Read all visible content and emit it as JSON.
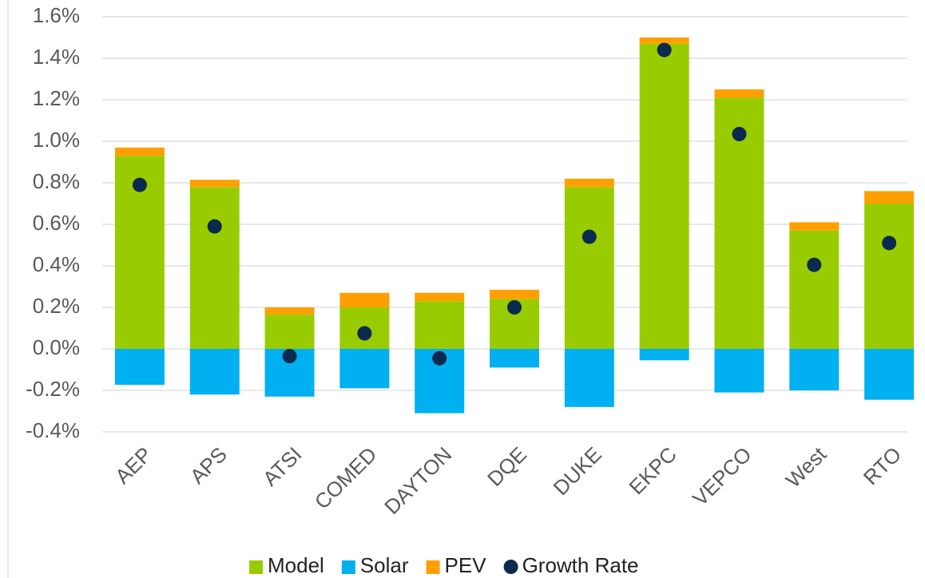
{
  "chart_data": {
    "type": "bar",
    "categories": [
      "AEP",
      "APS",
      "ATSI",
      "COMED",
      "DAYTON",
      "DQE",
      "DUKE",
      "EKPC",
      "VEPCO",
      "West",
      "RTO"
    ],
    "series": [
      {
        "name": "Model",
        "type": "bar",
        "color": "#99cc00",
        "values": [
          0.93,
          0.78,
          0.165,
          0.2,
          0.23,
          0.24,
          0.78,
          1.47,
          1.21,
          0.57,
          0.7
        ]
      },
      {
        "name": "Solar",
        "type": "bar",
        "color": "#00b0f0",
        "values": [
          -0.173,
          -0.22,
          -0.23,
          -0.19,
          -0.31,
          -0.09,
          -0.28,
          -0.055,
          -0.21,
          -0.2,
          -0.245
        ]
      },
      {
        "name": "PEV",
        "type": "bar",
        "color": "#ff9f00",
        "values": [
          0.04,
          0.035,
          0.035,
          0.07,
          0.04,
          0.045,
          0.04,
          0.03,
          0.04,
          0.04,
          0.06
        ]
      },
      {
        "name": "Growth Rate",
        "type": "scatter",
        "color": "#0b2a4f",
        "values": [
          0.79,
          0.59,
          -0.035,
          0.075,
          -0.045,
          0.2,
          0.54,
          1.44,
          1.035,
          0.405,
          0.51
        ]
      }
    ],
    "ylim": [
      -0.4,
      1.6
    ],
    "yticks": [
      {
        "value": -0.4,
        "label": "-0.4%"
      },
      {
        "value": -0.2,
        "label": "-0.2%"
      },
      {
        "value": 0,
        "label": "0.0%"
      },
      {
        "value": 0.2,
        "label": "0.2%"
      },
      {
        "value": 0.4,
        "label": "0.4%"
      },
      {
        "value": 0.6,
        "label": "0.6%"
      },
      {
        "value": 0.8,
        "label": "0.8%"
      },
      {
        "value": 1.0,
        "label": "1.0%"
      },
      {
        "value": 1.2,
        "label": "1.2%"
      },
      {
        "value": 1.4,
        "label": "1.4%"
      },
      {
        "value": 1.6,
        "label": "1.6%"
      }
    ],
    "grid": true,
    "legend": "bottom"
  }
}
